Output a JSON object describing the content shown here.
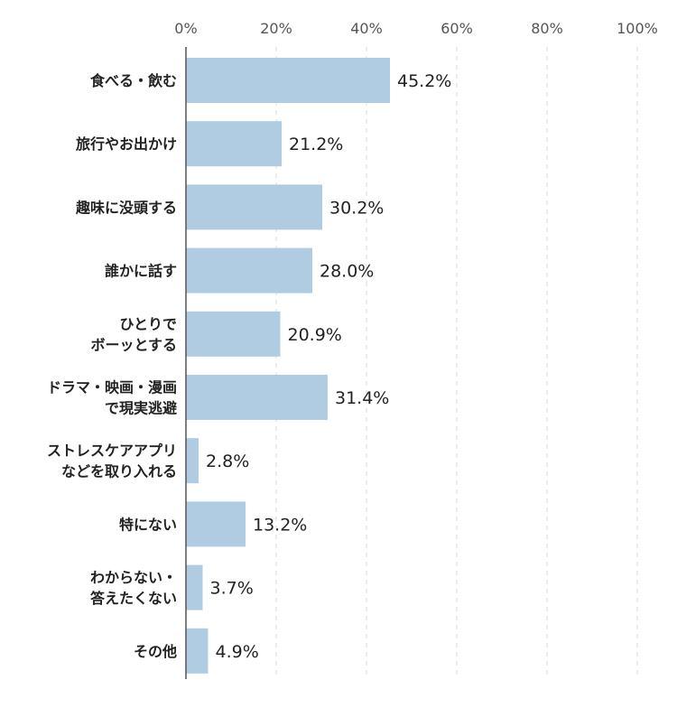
{
  "chart_data": {
    "type": "bar",
    "orientation": "horizontal",
    "title": "",
    "xlabel": "",
    "ylabel": "",
    "xlim": [
      0,
      100
    ],
    "ticks": [
      {
        "value": 0,
        "label": "0%"
      },
      {
        "value": 20,
        "label": "20%"
      },
      {
        "value": 40,
        "label": "40%"
      },
      {
        "value": 60,
        "label": "60%"
      },
      {
        "value": 80,
        "label": "80%"
      },
      {
        "value": 100,
        "label": "100%"
      }
    ],
    "grid": "vertical dashed",
    "categories": [
      [
        "食べる・飲む"
      ],
      [
        "旅行やお出かけ"
      ],
      [
        "趣味に没頭する"
      ],
      [
        "誰かに話す"
      ],
      [
        "ひとりで",
        "ボーッとする"
      ],
      [
        "ドラマ・映画・漫画",
        "で現実逃避"
      ],
      [
        "ストレスケアアプリ",
        "などを取り入れる"
      ],
      [
        "特にない"
      ],
      [
        "わからない・",
        "答えたくない"
      ],
      [
        "その他"
      ]
    ],
    "values": [
      45.2,
      21.2,
      30.2,
      28.0,
      20.9,
      31.4,
      2.8,
      13.2,
      3.7,
      4.9
    ],
    "value_labels": [
      "45.2%",
      "21.2%",
      "30.2%",
      "28.0%",
      "20.9%",
      "31.4%",
      "2.8%",
      "13.2%",
      "3.7%",
      "4.9%"
    ],
    "colors": {
      "bar": "#b0cce3",
      "grid": "#d9d9d9",
      "axis": "#555555",
      "tick_text": "#555555",
      "label_text": "#222222"
    }
  }
}
